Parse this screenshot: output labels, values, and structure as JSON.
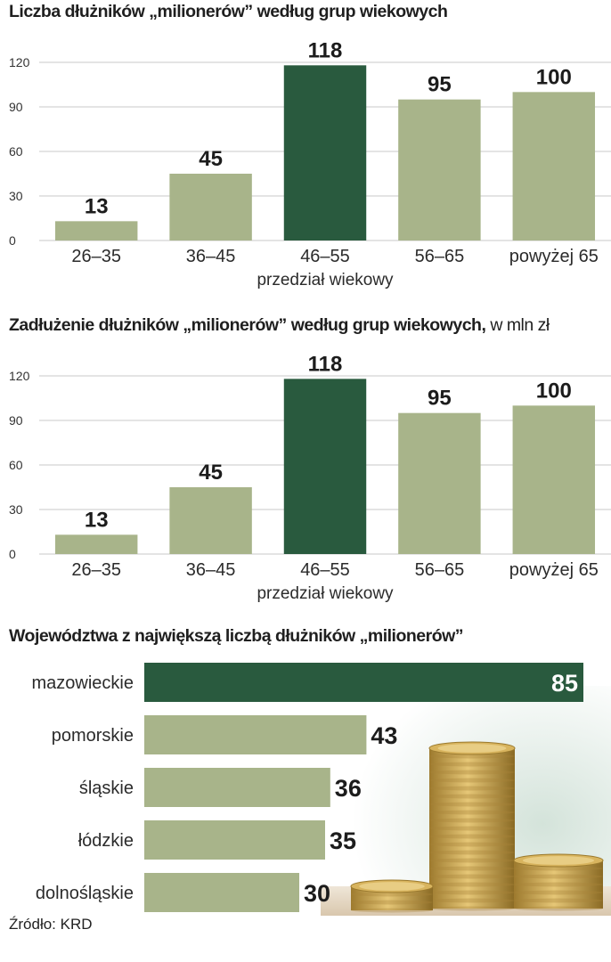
{
  "colors": {
    "bar": "#a8b48a",
    "highlight": "#295a3e",
    "grid": "#c9c9c9",
    "text": "#1c1c1c"
  },
  "chart_data": [
    {
      "type": "bar",
      "title": "Liczba dłużników „milionerów” według grup wiekowych",
      "title_suffix": "",
      "categories": [
        "26–35",
        "36–45",
        "46–55",
        "56–65",
        "powyżej 65"
      ],
      "values": [
        13,
        45,
        118,
        95,
        100
      ],
      "value_labels": [
        "13",
        "45",
        "118",
        "95",
        "100"
      ],
      "highlight_index": 2,
      "xlabel": "przedział wiekowy",
      "ylabel": "",
      "ylim": [
        0,
        120
      ],
      "yticks": [
        0,
        30,
        60,
        90,
        120
      ],
      "ytick_labels": [
        "0",
        "30",
        "60",
        "90",
        "120"
      ],
      "grid": true
    },
    {
      "type": "bar",
      "title": "Zadłużenie dłużników „milionerów” według grup wiekowych,",
      "title_suffix": "w mln zł",
      "categories": [
        "26–35",
        "36–45",
        "46–55",
        "56–65",
        "powyżej 65"
      ],
      "values": [
        13,
        45,
        118,
        95,
        100
      ],
      "value_labels": [
        "13",
        "45",
        "118",
        "95",
        "100"
      ],
      "highlight_index": 2,
      "xlabel": "przedział wiekowy",
      "ylabel": "",
      "ylim": [
        0,
        120
      ],
      "yticks": [
        0,
        30,
        60,
        90,
        120
      ],
      "ytick_labels": [
        "0",
        "30",
        "60",
        "90",
        "120"
      ],
      "grid": true
    },
    {
      "type": "bar",
      "orientation": "horizontal",
      "title": "Województwa z największą liczbą dłużników „milionerów”",
      "categories": [
        "mazowieckie",
        "pomorskie",
        "śląskie",
        "łódzkie",
        "dolnośląskie"
      ],
      "values": [
        85,
        43,
        36,
        35,
        30
      ],
      "value_labels": [
        "85",
        "43",
        "36",
        "35",
        "30"
      ],
      "highlight_index": 0,
      "xlim": [
        0,
        85
      ]
    }
  ],
  "footer": {
    "source": "Źródło: KRD"
  }
}
